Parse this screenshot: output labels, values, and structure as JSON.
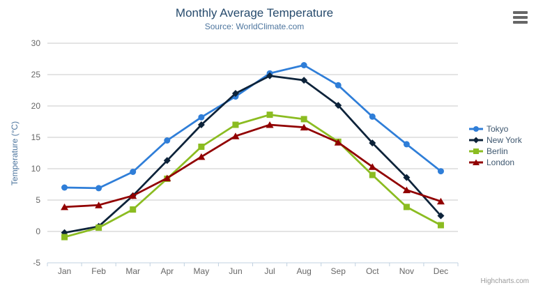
{
  "chart_data": {
    "type": "line",
    "title": "Monthly Average Temperature",
    "subtitle": "Source: WorldClimate.com",
    "xlabel": "",
    "ylabel": "Temperature (°C)",
    "ylim": [
      -5,
      30
    ],
    "ytick_step": 5,
    "grid": true,
    "legend_position": "right",
    "categories": [
      "Jan",
      "Feb",
      "Mar",
      "Apr",
      "May",
      "Jun",
      "Jul",
      "Aug",
      "Sep",
      "Oct",
      "Nov",
      "Dec"
    ],
    "series": [
      {
        "name": "Tokyo",
        "color": "#2f7ed8",
        "marker": "circle",
        "values": [
          7.0,
          6.9,
          9.5,
          14.5,
          18.2,
          21.5,
          25.2,
          26.5,
          23.3,
          18.3,
          13.9,
          9.6
        ]
      },
      {
        "name": "New York",
        "color": "#0d233a",
        "marker": "diamond",
        "values": [
          -0.2,
          0.8,
          5.7,
          11.3,
          17.0,
          22.0,
          24.8,
          24.1,
          20.1,
          14.1,
          8.6,
          2.5
        ]
      },
      {
        "name": "Berlin",
        "color": "#8bbc21",
        "marker": "square",
        "values": [
          -0.9,
          0.6,
          3.5,
          8.4,
          13.5,
          17.0,
          18.6,
          17.9,
          14.3,
          9.0,
          3.9,
          1.0
        ]
      },
      {
        "name": "London",
        "color": "#910000",
        "marker": "triangle",
        "values": [
          3.9,
          4.2,
          5.7,
          8.5,
          11.9,
          15.2,
          17.0,
          16.6,
          14.2,
          10.3,
          6.6,
          4.8
        ]
      }
    ],
    "colors": {
      "grid": "#c8c8c8",
      "axis_line": "#c0d0e0",
      "tick": "#c0d0e0",
      "axis_label": "#666666",
      "axis_title": "#4d759e",
      "title": "#274b6d",
      "subtitle": "#4d759e",
      "legend_text": "#3e576f"
    }
  },
  "credit": {
    "label": "Highcharts.com"
  },
  "menu": {
    "icon_name": "hamburger-menu-icon"
  }
}
